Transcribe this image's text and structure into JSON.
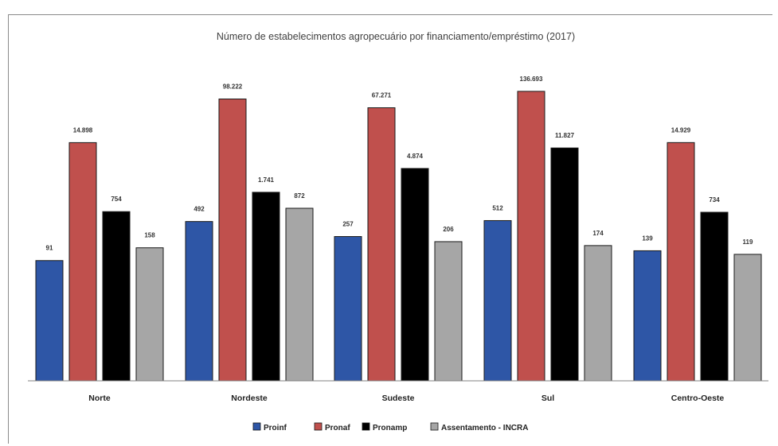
{
  "chart_data": {
    "type": "bar",
    "title": "Número de estabelecimentos agropecuário por financiamento/empréstimo (2017)",
    "categories": [
      "Norte",
      "Nordeste",
      "Sudeste",
      "Sul",
      "Centro-Oeste"
    ],
    "series": [
      {
        "name": "Proinf",
        "color": "#2e56a6",
        "values": [
          91,
          492,
          257,
          512,
          139
        ],
        "labels": [
          "91",
          "492",
          "257",
          "512",
          "139"
        ]
      },
      {
        "name": "Pronaf",
        "color": "#c0504d",
        "values": [
          14898,
          98222,
          67271,
          136693,
          14929
        ],
        "labels": [
          "14.898",
          "98.222",
          "67.271",
          "136.693",
          "14.929"
        ]
      },
      {
        "name": "Pronamp",
        "color": "#000000",
        "values": [
          754,
          1741,
          4874,
          11827,
          734
        ],
        "labels": [
          "754",
          "1.741",
          "4.874",
          "11.827",
          "734"
        ]
      },
      {
        "name": "Assentamento - INCRA",
        "color": "#a6a6a6",
        "values": [
          158,
          872,
          206,
          174,
          119
        ],
        "labels": [
          "158",
          "872",
          "206",
          "174",
          "119"
        ]
      }
    ],
    "legend_position": "bottom",
    "grid": false
  }
}
